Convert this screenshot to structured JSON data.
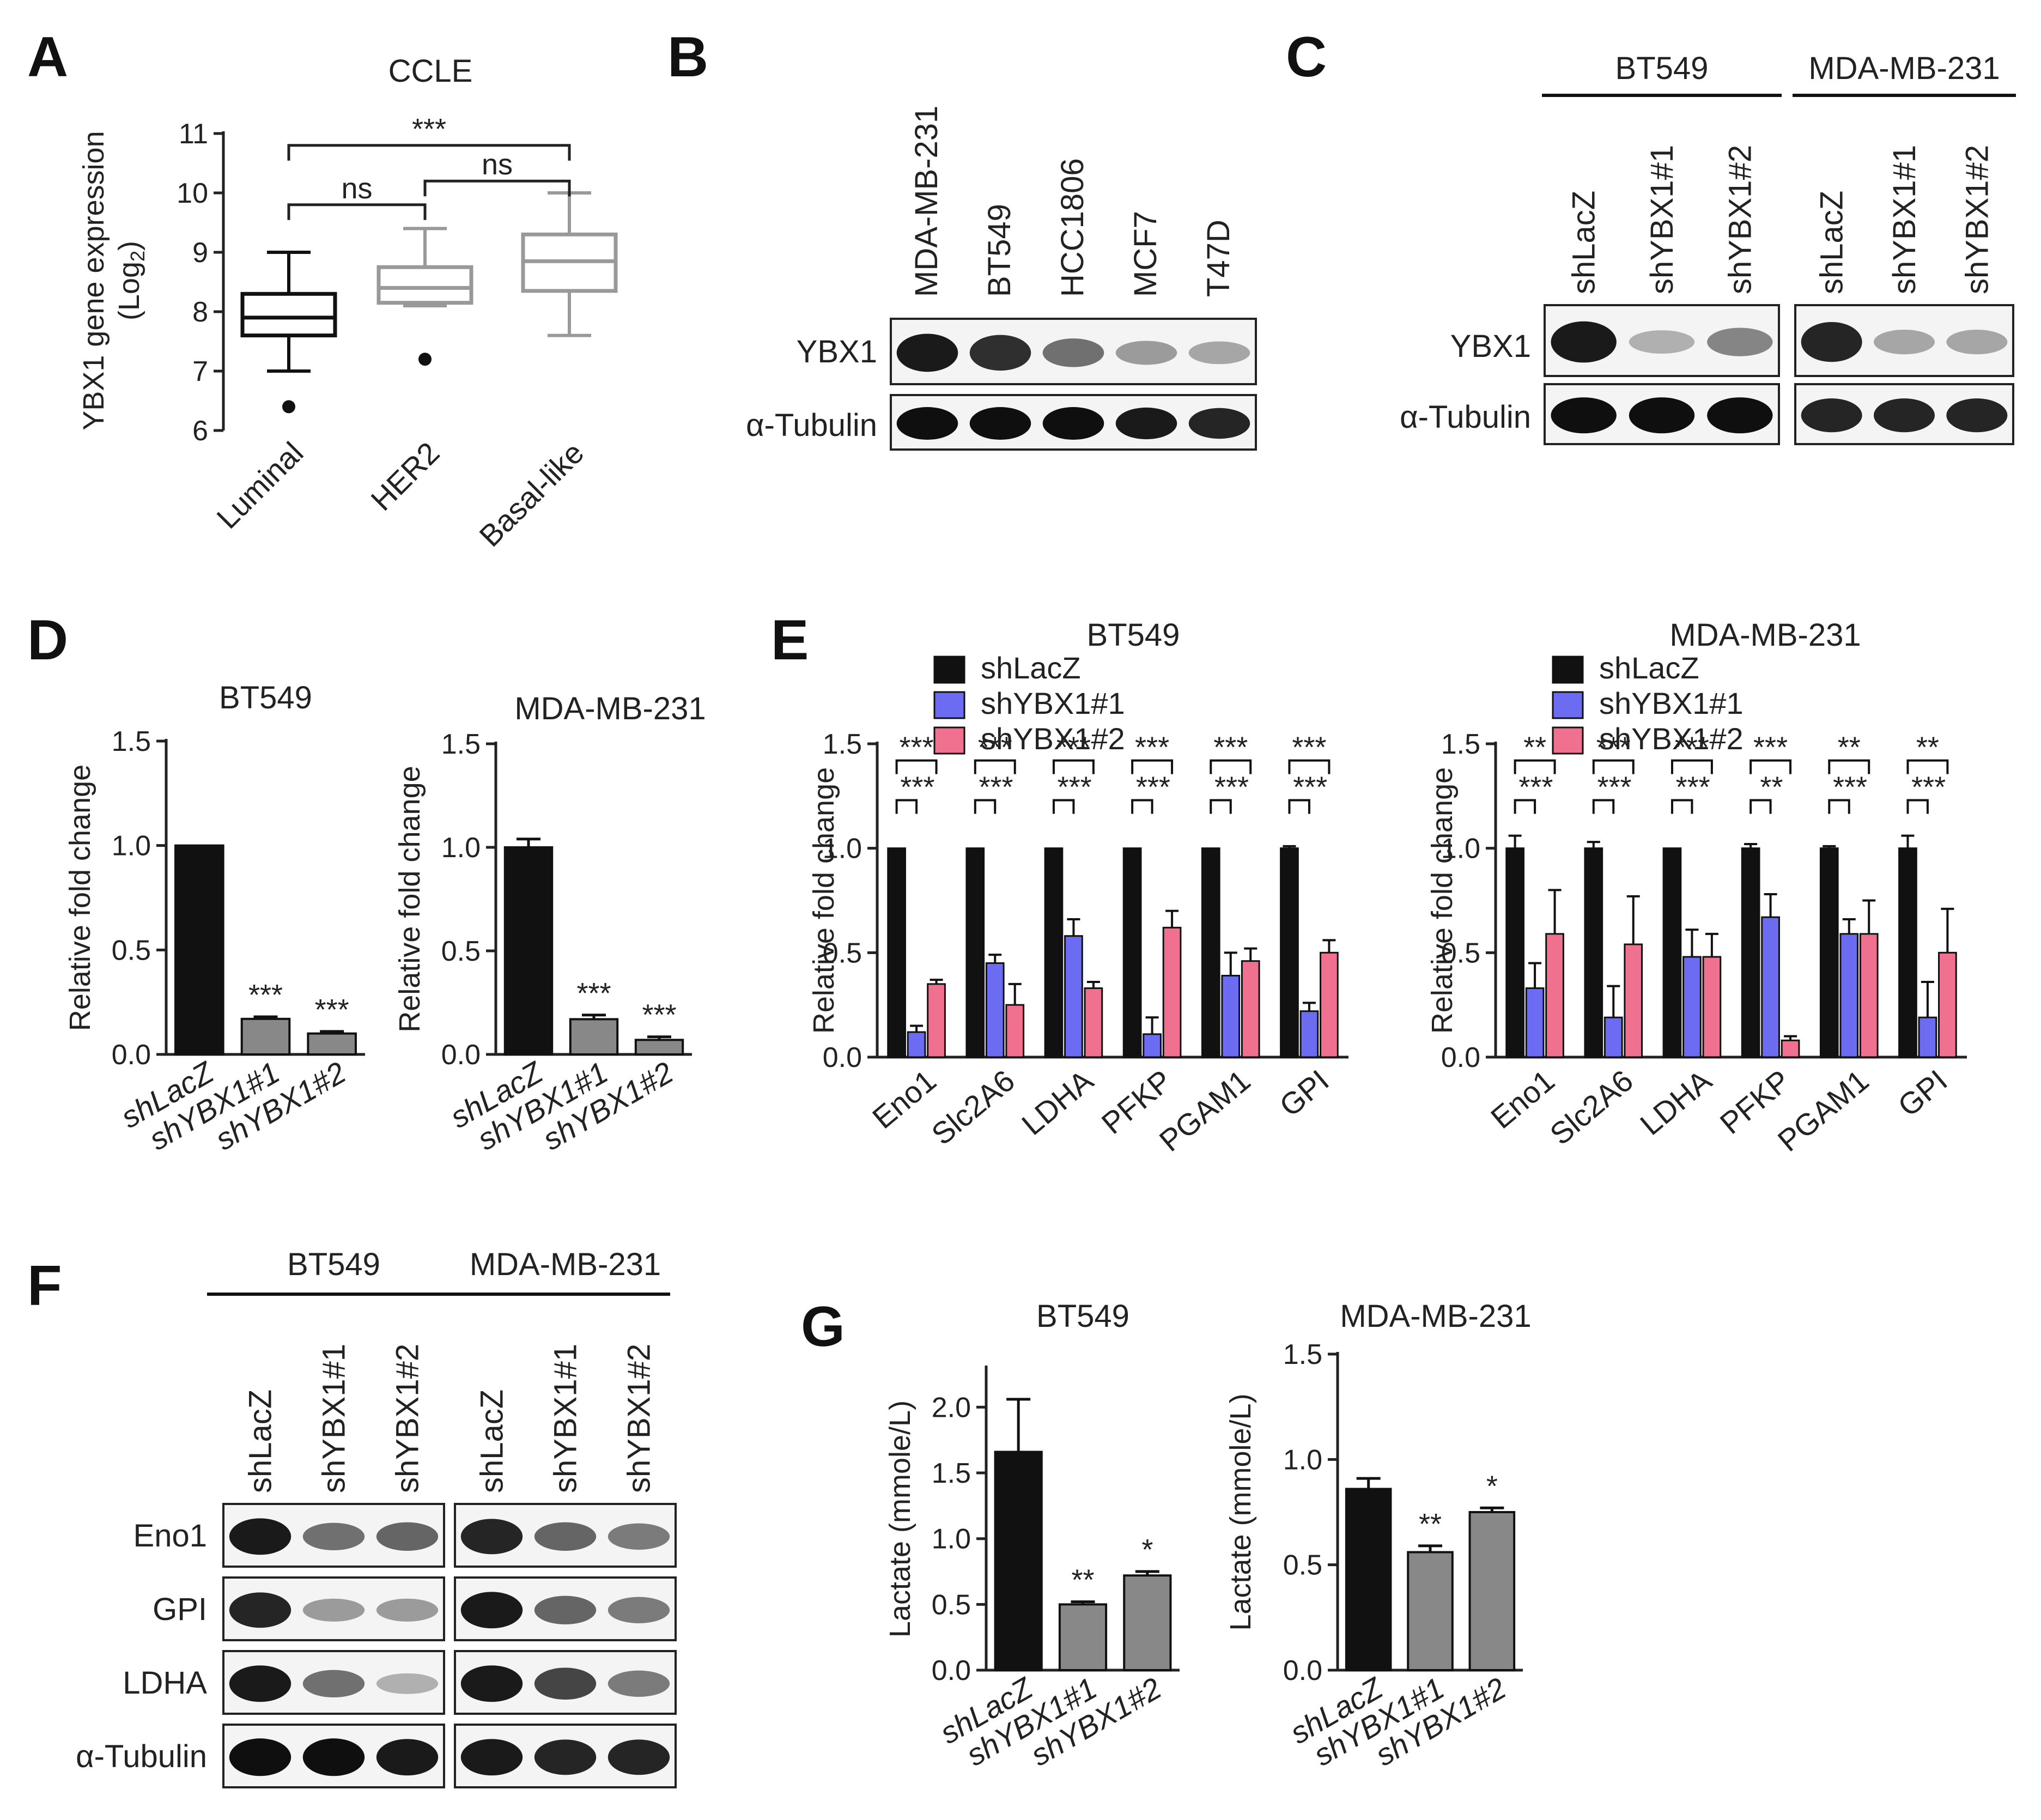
{
  "panel_letters": [
    "A",
    "B",
    "C",
    "D",
    "E",
    "F",
    "G"
  ],
  "colors": {
    "black": "#111111",
    "gray": "#888888",
    "blue": "#6b6cf2",
    "pink": "#f07090",
    "box_gray": "#999999"
  },
  "chart_data": [
    {
      "id": "A",
      "type": "box",
      "title": "CCLE",
      "ylabel": "YBX1 gene expression (Log2)",
      "ylabel_line1": "YBX1 gene expression",
      "ylabel_line2": "(Log",
      "ylabel_sub": "2",
      "ylabel_close": ")",
      "ylim": [
        6,
        11
      ],
      "yticks": [
        "6",
        "7",
        "8",
        "9",
        "10",
        "11"
      ],
      "categories": [
        "Luminal",
        "HER2",
        "Basal-like"
      ],
      "boxes": [
        {
          "name": "Luminal",
          "whisker_low": 7.0,
          "q1": 7.6,
          "median": 7.9,
          "q3": 8.3,
          "whisker_high": 9.0,
          "outliers": [
            6.4
          ],
          "color": "#111111"
        },
        {
          "name": "HER2",
          "whisker_low": 8.1,
          "q1": 8.15,
          "median": 8.4,
          "q3": 8.75,
          "whisker_high": 9.4,
          "outliers": [
            7.2
          ],
          "color": "#999999"
        },
        {
          "name": "Basal-like",
          "whisker_low": 7.6,
          "q1": 8.35,
          "median": 8.85,
          "q3": 9.3,
          "whisker_high": 10.0,
          "outliers": [],
          "color": "#999999"
        }
      ],
      "comparisons": [
        {
          "from": 0,
          "to": 2,
          "label": "***",
          "y": 10.8
        },
        {
          "from": 1,
          "to": 2,
          "label": "ns",
          "y": 10.2
        },
        {
          "from": 0,
          "to": 1,
          "label": "ns",
          "y": 9.8
        }
      ]
    },
    {
      "id": "D-BT549",
      "type": "bar",
      "title": "BT549",
      "ylabel": "Relative fold change",
      "ylim": [
        0,
        1.5
      ],
      "yticks": [
        "0.0",
        "0.5",
        "1.0",
        "1.5"
      ],
      "categories": [
        "shLacZ",
        "shYBX1#1",
        "shYBX1#2"
      ],
      "values": [
        1.0,
        0.17,
        0.1
      ],
      "errors": [
        0.0,
        0.01,
        0.01
      ],
      "colors": [
        "#111111",
        "#888888",
        "#888888"
      ],
      "signif": [
        "",
        "***",
        "***"
      ]
    },
    {
      "id": "D-MDA",
      "type": "bar",
      "title": "MDA-MB-231",
      "ylabel": "Relative fold change",
      "ylim": [
        0,
        1.5
      ],
      "yticks": [
        "0.0",
        "0.5",
        "1.0",
        "1.5"
      ],
      "categories": [
        "shLacZ",
        "shYBX1#1",
        "shYBX1#2"
      ],
      "values": [
        1.0,
        0.17,
        0.07
      ],
      "errors": [
        0.04,
        0.02,
        0.015
      ],
      "colors": [
        "#111111",
        "#888888",
        "#888888"
      ],
      "signif": [
        "",
        "***",
        "***"
      ]
    },
    {
      "id": "E-BT549",
      "type": "grouped-bar",
      "title": "BT549",
      "ylabel": "Relative fold change",
      "ylim": [
        0,
        1.5
      ],
      "yticks": [
        "0.0",
        "0.5",
        "1.0",
        "1.5"
      ],
      "categories": [
        "Eno1",
        "Slc2A6",
        "LDHA",
        "PFKP",
        "PGAM1",
        "GPI"
      ],
      "series": [
        {
          "name": "shLacZ",
          "color": "#111111",
          "values": [
            1.0,
            1.0,
            1.0,
            1.0,
            1.0,
            1.0
          ],
          "errors": [
            0,
            0,
            0,
            0,
            0,
            0.01
          ]
        },
        {
          "name": "shYBX1#1",
          "color": "#6b6cf2",
          "values": [
            0.12,
            0.45,
            0.58,
            0.11,
            0.39,
            0.22
          ],
          "errors": [
            0.03,
            0.04,
            0.08,
            0.08,
            0.11,
            0.04
          ]
        },
        {
          "name": "shYBX1#2",
          "color": "#f07090",
          "values": [
            0.35,
            0.25,
            0.33,
            0.62,
            0.46,
            0.5
          ],
          "errors": [
            0.02,
            0.1,
            0.03,
            0.08,
            0.06,
            0.06
          ]
        }
      ],
      "comparisons": [
        {
          "upper": "***",
          "lower": "***"
        },
        {
          "upper": "***",
          "lower": "***"
        },
        {
          "upper": "***",
          "lower": "***"
        },
        {
          "upper": "***",
          "lower": "***"
        },
        {
          "upper": "***",
          "lower": "***"
        },
        {
          "upper": "***",
          "lower": "***"
        }
      ]
    },
    {
      "id": "E-MDA",
      "type": "grouped-bar",
      "title": "MDA-MB-231",
      "ylabel": "Relative fold change",
      "ylim": [
        0,
        1.5
      ],
      "yticks": [
        "0.0",
        "0.5",
        "1.0",
        "1.5"
      ],
      "categories": [
        "Eno1",
        "Slc2A6",
        "LDHA",
        "PFKP",
        "PGAM1",
        "GPI"
      ],
      "series": [
        {
          "name": "shLacZ",
          "color": "#111111",
          "values": [
            1.0,
            1.0,
            1.0,
            1.0,
            1.0,
            1.0
          ],
          "errors": [
            0.06,
            0.03,
            0,
            0.02,
            0.01,
            0.06
          ]
        },
        {
          "name": "shYBX1#1",
          "color": "#6b6cf2",
          "values": [
            0.33,
            0.19,
            0.48,
            0.67,
            0.59,
            0.19
          ],
          "errors": [
            0.12,
            0.15,
            0.13,
            0.11,
            0.07,
            0.17
          ]
        },
        {
          "name": "shYBX1#2",
          "color": "#f07090",
          "values": [
            0.59,
            0.54,
            0.48,
            0.08,
            0.59,
            0.5
          ],
          "errors": [
            0.21,
            0.23,
            0.11,
            0.02,
            0.16,
            0.21
          ]
        }
      ],
      "comparisons": [
        {
          "upper": "**",
          "lower": "***"
        },
        {
          "upper": "***",
          "lower": "***"
        },
        {
          "upper": "***",
          "lower": "***"
        },
        {
          "upper": "***",
          "lower": "**"
        },
        {
          "upper": "**",
          "lower": "***"
        },
        {
          "upper": "**",
          "lower": "***"
        }
      ]
    },
    {
      "id": "G-BT549",
      "type": "bar",
      "title": "BT549",
      "ylabel": "Lactate (mmole/L)",
      "ylim": [
        0,
        2.3
      ],
      "yticks": [
        "0.0",
        "0.5",
        "1.0",
        "1.5",
        "2.0"
      ],
      "ytick_values": [
        0,
        0.5,
        1.0,
        1.5,
        2.0
      ],
      "categories": [
        "shLacZ",
        "shYBX1#1",
        "shYBX1#2"
      ],
      "values": [
        1.66,
        0.5,
        0.72
      ],
      "errors": [
        0.4,
        0.02,
        0.03
      ],
      "colors": [
        "#111111",
        "#888888",
        "#888888"
      ],
      "signif": [
        "",
        "**",
        "*"
      ]
    },
    {
      "id": "G-MDA",
      "type": "bar",
      "title": "MDA-MB-231",
      "ylabel": "Lactate (mmole/L)",
      "ylim": [
        0,
        1.5
      ],
      "yticks": [
        "0.0",
        "0.5",
        "1.0",
        "1.5"
      ],
      "categories": [
        "shLacZ",
        "shYBX1#1",
        "shYBX1#2"
      ],
      "values": [
        0.86,
        0.56,
        0.75
      ],
      "errors": [
        0.05,
        0.03,
        0.02
      ],
      "colors": [
        "#111111",
        "#888888",
        "#888888"
      ],
      "signif": [
        "",
        "**",
        "*"
      ]
    }
  ],
  "blots": {
    "B": {
      "lanes": [
        "MDA-MB-231",
        "BT549",
        "HCC1806",
        "MCF7",
        "T47D"
      ],
      "rows": [
        {
          "label": "YBX1",
          "intensity": [
            0.95,
            0.85,
            0.55,
            0.35,
            0.3
          ]
        },
        {
          "label": "α-Tubulin",
          "intensity": [
            1.0,
            1.0,
            1.0,
            0.95,
            0.9
          ]
        }
      ]
    },
    "C": {
      "groups": [
        {
          "name": "BT549",
          "lanes": [
            "shLacZ",
            "shYBX1#1",
            "shYBX1#2"
          ]
        },
        {
          "name": "MDA-MB-231",
          "lanes": [
            "shLacZ",
            "shYBX1#1",
            "shYBX1#2"
          ]
        }
      ],
      "rows": [
        {
          "label": "YBX1",
          "intensity": [
            0.95,
            0.25,
            0.45,
            0.9,
            0.3,
            0.3
          ]
        },
        {
          "label": "α-Tubulin",
          "intensity": [
            1.0,
            1.0,
            1.0,
            0.9,
            0.9,
            0.9
          ]
        }
      ]
    },
    "F": {
      "groups": [
        {
          "name": "BT549",
          "lanes": [
            "shLacZ",
            "shYBX1#1",
            "shYBX1#2"
          ]
        },
        {
          "name": "MDA-MB-231",
          "lanes": [
            "shLacZ",
            "shYBX1#1",
            "shYBX1#2"
          ]
        }
      ],
      "rows": [
        {
          "label": "Eno1",
          "intensity": [
            0.95,
            0.55,
            0.6,
            0.9,
            0.6,
            0.5
          ]
        },
        {
          "label": "GPI",
          "intensity": [
            0.9,
            0.35,
            0.35,
            0.95,
            0.6,
            0.5
          ]
        },
        {
          "label": "LDHA",
          "intensity": [
            0.95,
            0.55,
            0.25,
            0.95,
            0.75,
            0.5
          ]
        },
        {
          "label": "α-Tubulin",
          "intensity": [
            1.0,
            1.0,
            0.95,
            0.95,
            0.9,
            0.9
          ]
        }
      ]
    }
  }
}
